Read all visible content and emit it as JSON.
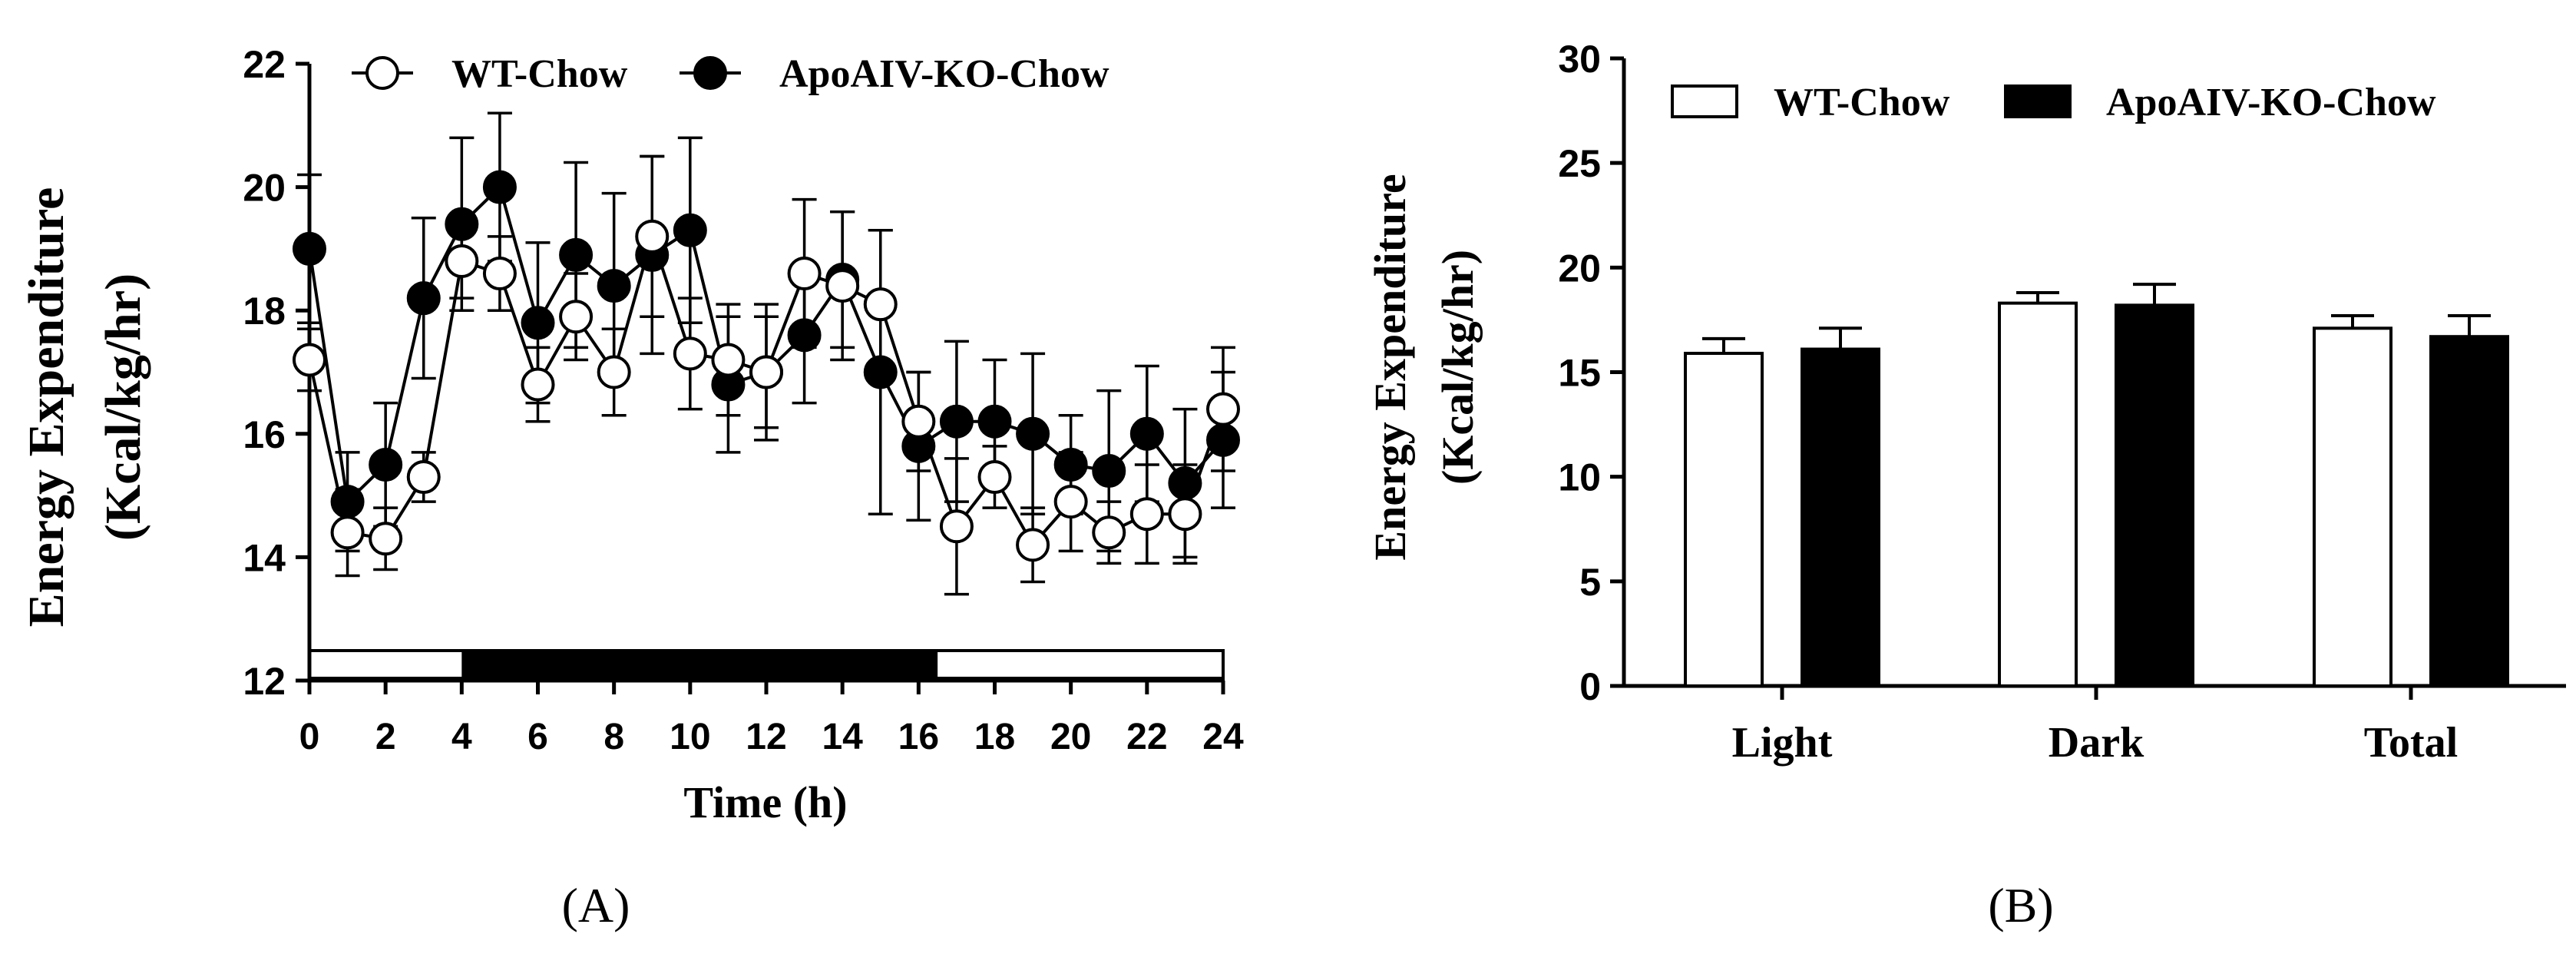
{
  "chart_data": [
    {
      "panel_label": "(A)",
      "type": "line",
      "xlabel": "Time  (h)",
      "ylabel_line1": "Energy Expenditure",
      "ylabel_line2": "(Kcal/kg/hr)",
      "xlim": [
        0,
        24
      ],
      "ylim": [
        12,
        22
      ],
      "x": [
        0,
        1,
        2,
        3,
        4,
        5,
        6,
        7,
        8,
        9,
        10,
        11,
        12,
        13,
        14,
        15,
        16,
        17,
        18,
        19,
        20,
        21,
        22,
        23,
        24
      ],
      "x_ticks": [
        "0",
        "2",
        "4",
        "6",
        "8",
        "10",
        "12",
        "14",
        "16",
        "18",
        "20",
        "22",
        "24"
      ],
      "y_ticks": [
        "12",
        "14",
        "16",
        "18",
        "20",
        "22"
      ],
      "dark_phase": [
        4,
        16.5
      ],
      "legend_position": "top",
      "series": [
        {
          "name": "WT-Chow",
          "marker": "open-circle",
          "values": [
            17.2,
            14.4,
            14.3,
            15.3,
            18.8,
            18.6,
            16.8,
            17.9,
            17.0,
            19.2,
            17.3,
            17.2,
            17.0,
            18.6,
            18.4,
            18.1,
            16.2,
            14.5,
            15.3,
            14.2,
            14.9,
            14.4,
            14.7,
            14.7,
            16.4
          ],
          "errors": [
            0.5,
            0.7,
            0.5,
            0.4,
            0.6,
            0.6,
            0.6,
            0.7,
            0.7,
            1.3,
            0.9,
            0.9,
            0.9,
            1.2,
            1.2,
            1.2,
            0.8,
            1.1,
            0.5,
            0.6,
            0.8,
            0.5,
            0.8,
            0.8,
            1.0
          ]
        },
        {
          "name": "ApoAIV-KO-Chow",
          "marker": "filled-circle",
          "values": [
            19.0,
            14.9,
            15.5,
            18.2,
            19.4,
            20.0,
            17.8,
            18.9,
            18.4,
            18.9,
            19.3,
            16.8,
            17.0,
            17.6,
            18.5,
            17.0,
            15.8,
            16.2,
            16.2,
            16.0,
            15.5,
            15.4,
            16.0,
            15.2,
            15.9
          ],
          "errors": [
            1.2,
            0.8,
            1.0,
            1.3,
            1.4,
            1.2,
            1.3,
            1.5,
            1.5,
            1.6,
            1.5,
            1.1,
            1.1,
            1.1,
            1.1,
            2.3,
            1.2,
            1.3,
            1.0,
            1.3,
            0.8,
            1.3,
            1.1,
            1.2,
            1.1
          ]
        }
      ]
    },
    {
      "panel_label": "(B)",
      "type": "bar",
      "ylabel_line1": "Energy Expenditure",
      "ylabel_line2": "(Kcal/kg/hr)",
      "ylim": [
        0,
        30
      ],
      "y_ticks": [
        "0",
        "5",
        "10",
        "15",
        "20",
        "25",
        "30"
      ],
      "categories": [
        "Light",
        "Dark",
        "Total"
      ],
      "legend_position": "top",
      "series": [
        {
          "name": "WT-Chow",
          "fill": "#ffffff",
          "values": [
            15.9,
            18.3,
            17.1
          ],
          "errors": [
            0.7,
            0.5,
            0.6
          ]
        },
        {
          "name": "ApoAIV-KO-Chow",
          "fill": "#000000",
          "values": [
            16.1,
            18.2,
            16.7
          ],
          "errors": [
            1.0,
            1.0,
            1.0
          ]
        }
      ]
    }
  ]
}
